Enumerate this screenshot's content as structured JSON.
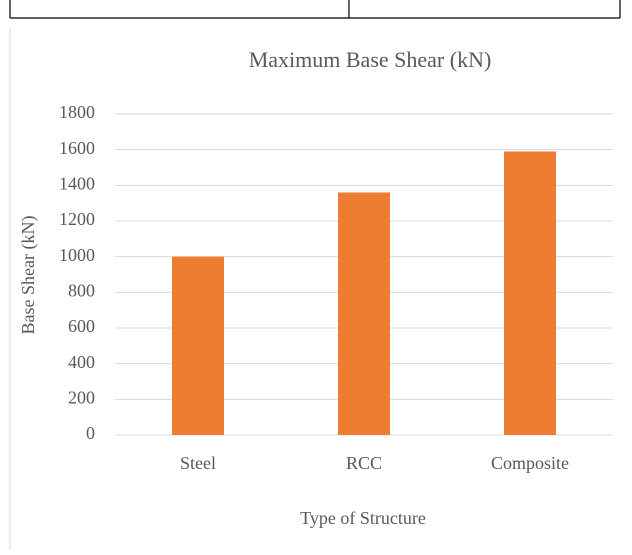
{
  "chart_data": {
    "type": "bar",
    "title": "Maximum Base Shear (kN)",
    "x_label": "Type of Structure",
    "y_label": "Base Shear (kN)",
    "categories": [
      "Steel",
      "RCC",
      "Composite"
    ],
    "values": [
      1000,
      1360,
      1590
    ],
    "color": "#ed7d31",
    "ylim": [
      0,
      1800
    ],
    "yticks": [
      0,
      200,
      400,
      600,
      800,
      1000,
      1200,
      1400,
      1600,
      1800
    ],
    "grid": true
  }
}
